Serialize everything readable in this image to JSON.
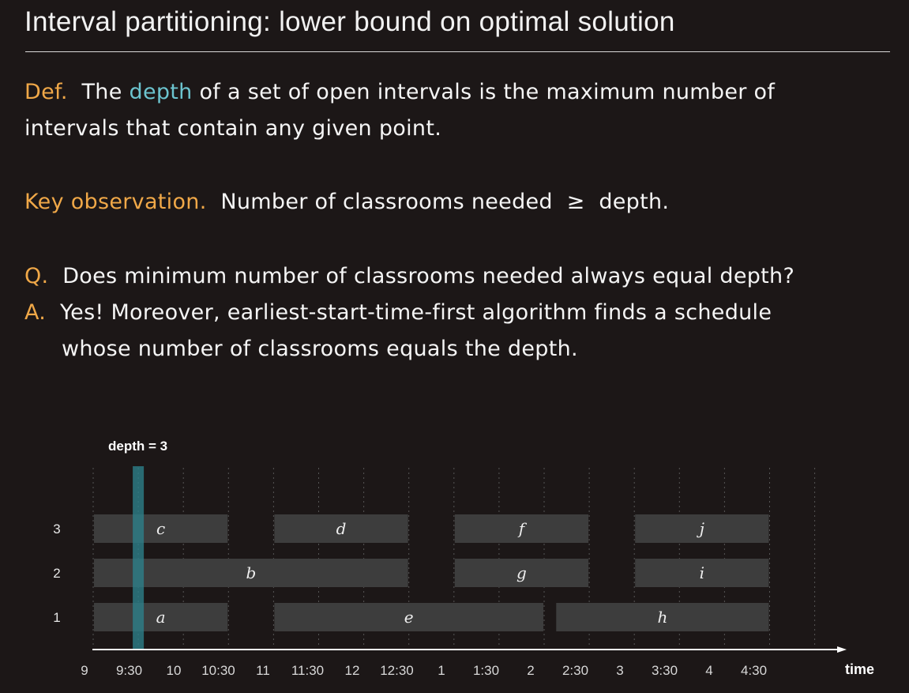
{
  "title": "Interval partitioning:  lower bound on optimal solution",
  "definition": {
    "prefix": "Def.",
    "text_before": "  The ",
    "term": "depth",
    "text_after": " of a set of open intervals is the maximum number of",
    "line2": "intervals that contain any given point."
  },
  "observation": {
    "prefix": "Key observation.",
    "text": "  Number of classrooms needed  ≥  depth."
  },
  "question": {
    "prefix": "Q.",
    "text": "  Does minimum number of classrooms needed always equal depth?"
  },
  "answer": {
    "prefix": "A.",
    "text": "  Yes! Moreover, earliest-start-time-first algorithm finds a schedule",
    "line2": "whose number of classrooms equals the depth."
  },
  "colors": {
    "background": "#1c1717",
    "accent_orange": "#f0a848",
    "accent_cyan": "#6cc4cf",
    "interval_fill": "#3d3d3d",
    "depth_band": "#2d7f8a"
  },
  "diagram": {
    "depth_label": "depth = 3",
    "depth_at": "9:30",
    "axis_label": "time",
    "ticks": [
      "9",
      "9:30",
      "10",
      "10:30",
      "11",
      "11:30",
      "12",
      "12:30",
      "1",
      "1:30",
      "2",
      "2:30",
      "3",
      "3:30",
      "4",
      "4:30"
    ],
    "rows": [
      "1",
      "2",
      "3"
    ],
    "intervals": [
      {
        "label": "a",
        "row": 1,
        "start": 0,
        "end": 3
      },
      {
        "label": "b",
        "row": 2,
        "start": 0,
        "end": 7
      },
      {
        "label": "c",
        "row": 3,
        "start": 0,
        "end": 3
      },
      {
        "label": "d",
        "row": 3,
        "start": 4,
        "end": 7
      },
      {
        "label": "e",
        "row": 1,
        "start": 4,
        "end": 10
      },
      {
        "label": "f",
        "row": 3,
        "start": 8,
        "end": 11
      },
      {
        "label": "g",
        "row": 2,
        "start": 8,
        "end": 11
      },
      {
        "label": "h",
        "row": 1,
        "start": 10.25,
        "end": 15
      },
      {
        "label": "i",
        "row": 2,
        "start": 12,
        "end": 15
      },
      {
        "label": "j",
        "row": 3,
        "start": 12,
        "end": 15
      }
    ]
  }
}
